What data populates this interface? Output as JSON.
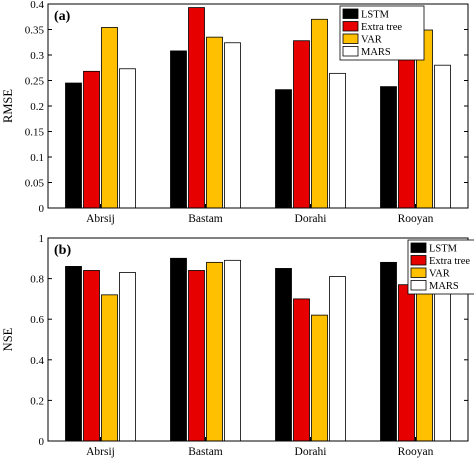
{
  "chart_data": [
    {
      "type": "bar",
      "panel_label": "(a)",
      "ylabel": "RMSE",
      "xlabel": "",
      "ylim": [
        0,
        0.4
      ],
      "yticks": [
        "0",
        "0.05",
        "0.1",
        "0.15",
        "0.2",
        "0.25",
        "0.3",
        "0.35",
        "0.4"
      ],
      "tick_values": [
        0,
        0.05,
        0.1,
        0.15,
        0.2,
        0.25,
        0.3,
        0.35,
        0.4
      ],
      "categories": [
        "Abrsij",
        "Bastam",
        "Dorahi",
        "Rooyan"
      ],
      "legend_position": "top-right",
      "series": [
        {
          "name": "LSTM",
          "color": "#000000",
          "values": [
            0.245,
            0.308,
            0.232,
            0.238
          ]
        },
        {
          "name": "Extra tree",
          "color": "#e60000",
          "values": [
            0.268,
            0.393,
            0.328,
            0.337
          ]
        },
        {
          "name": "VAR",
          "color": "#ffc000",
          "values": [
            0.354,
            0.335,
            0.37,
            0.349
          ]
        },
        {
          "name": "MARS",
          "color": "#ffffff",
          "values": [
            0.273,
            0.324,
            0.264,
            0.28
          ]
        }
      ]
    },
    {
      "type": "bar",
      "panel_label": "(b)",
      "ylabel": "NSE",
      "xlabel": "",
      "ylim": [
        0,
        1
      ],
      "yticks": [
        "0",
        "0.2",
        "0.4",
        "0.6",
        "0.8",
        "1"
      ],
      "tick_values": [
        0,
        0.2,
        0.4,
        0.6,
        0.8,
        1
      ],
      "categories": [
        "Abrsij",
        "Bastam",
        "Dorahi",
        "Rooyan"
      ],
      "legend_position": "top-right",
      "series": [
        {
          "name": "LSTM",
          "color": "#000000",
          "values": [
            0.86,
            0.9,
            0.85,
            0.88
          ]
        },
        {
          "name": "Extra tree",
          "color": "#e60000",
          "values": [
            0.84,
            0.84,
            0.7,
            0.77
          ]
        },
        {
          "name": "VAR",
          "color": "#ffc000",
          "values": [
            0.72,
            0.88,
            0.62,
            0.75
          ]
        },
        {
          "name": "MARS",
          "color": "#ffffff",
          "values": [
            0.83,
            0.89,
            0.81,
            0.84
          ]
        }
      ]
    }
  ]
}
